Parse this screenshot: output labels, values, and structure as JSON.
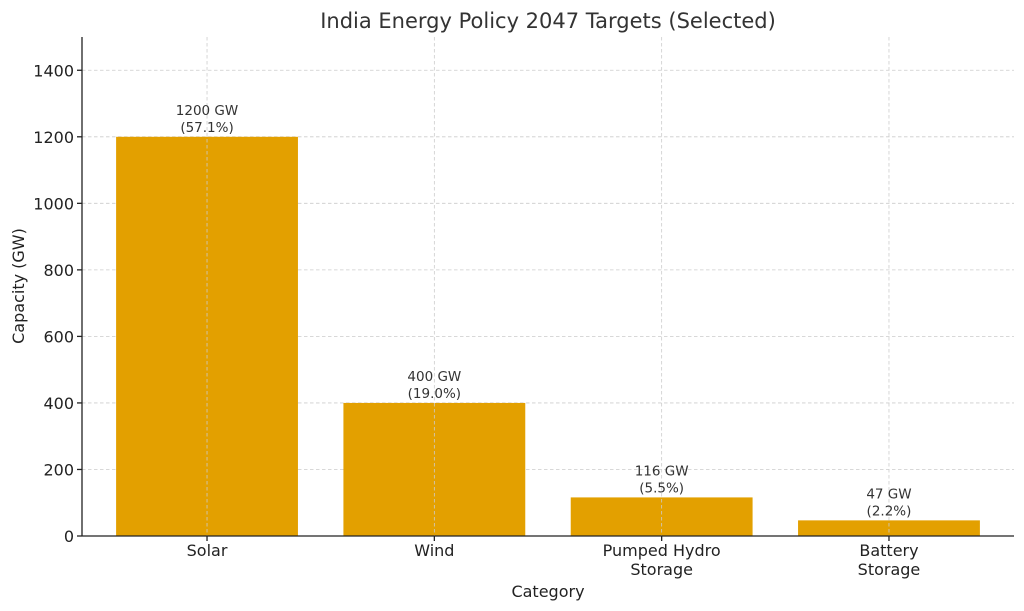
{
  "chart_data": {
    "type": "bar",
    "title": "India Energy Policy 2047 Targets (Selected)",
    "xlabel": "Category",
    "ylabel": "Capacity (GW)",
    "categories": [
      [
        "Solar"
      ],
      [
        "Wind"
      ],
      [
        "Pumped Hydro",
        "Storage"
      ],
      [
        "Battery",
        "Storage"
      ]
    ],
    "values": [
      1200,
      400,
      116,
      47
    ],
    "data_labels": [
      [
        "1200 GW",
        "(57.1%)"
      ],
      [
        "400 GW",
        "(19.0%)"
      ],
      [
        "116 GW",
        "(5.5%)"
      ],
      [
        "47 GW",
        "(2.2%)"
      ]
    ],
    "ylim": [
      0,
      1500
    ],
    "yticks": [
      0,
      200,
      400,
      600,
      800,
      1000,
      1200,
      1400
    ],
    "grid": true,
    "bar_color": "#E3A000"
  }
}
